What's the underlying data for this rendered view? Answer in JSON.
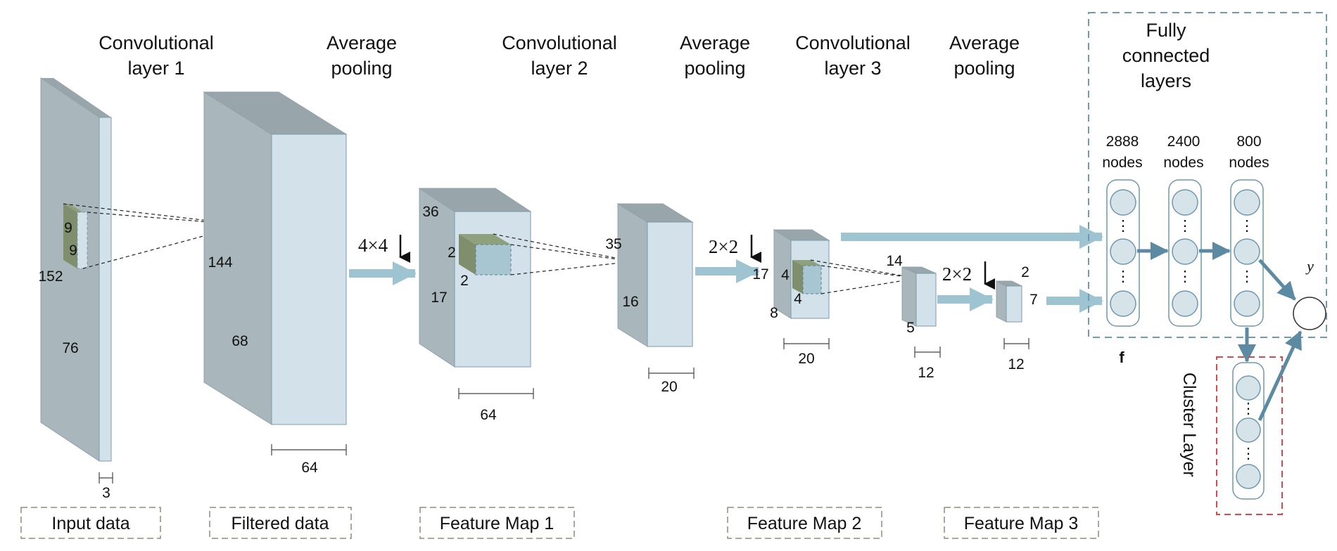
{
  "colors": {
    "block_side": "#a9b6bb",
    "block_top": "#98a5aa",
    "block_front": "#d3e2ea",
    "block_edge": "#7d9aab",
    "kernel_dark": "#7f8f6e",
    "kernel_light": "#a7c6d2",
    "arrow_light": "#9ec4d2",
    "arrow_dark": "#5c8aa3",
    "node_fill": "#d6e4ea",
    "node_stroke": "#6f98ad",
    "fc_box": "#6f9ab1",
    "cluster_box": "#e0474c",
    "label_box": "#8f8b80"
  },
  "headings": {
    "conv1": [
      "Convolutional",
      "layer 1"
    ],
    "pool1": [
      "Average",
      "pooling"
    ],
    "conv2": [
      "Convolutional",
      "layer 2"
    ],
    "pool2": [
      "Average",
      "pooling"
    ],
    "conv3": [
      "Convolutional",
      "layer 3"
    ],
    "pool3": [
      "Average",
      "pooling"
    ],
    "fc": [
      "Fully",
      "connected",
      "layers"
    ]
  },
  "dims": {
    "input_kernel_a": "9",
    "input_kernel_b": "9",
    "input_h": "152",
    "input_w": "76",
    "input_d": "3",
    "filtered_h": "144",
    "filtered_w": "68",
    "filtered_d": "64",
    "fm1_h": "36",
    "fm1_w": "17",
    "fm1_k_a": "2",
    "fm1_k_b": "2",
    "fm1_d": "64",
    "pool1_h": "35",
    "pool1_w": "16",
    "pool1_d": "20",
    "conv3_in": "17",
    "conv3_k_a": "4",
    "conv3_k_b": "4",
    "conv3_w": "8",
    "fm2_d": "20",
    "pool3_h": "14",
    "pool3_w": "5",
    "pool3_d": "12",
    "fm3_h": "2",
    "fm3_w": "7",
    "fm3_d": "12"
  },
  "ops": {
    "pool_4x4": "4×4",
    "pool_2x2_a": "2×2",
    "pool_2x2_b": "2×2"
  },
  "fc_layers": {
    "layer1": [
      "2888",
      "nodes"
    ],
    "layer2": [
      "2400",
      "nodes"
    ],
    "layer3": [
      "800",
      "nodes"
    ]
  },
  "ellipsis": "⋮",
  "feature_label": "f",
  "output_label": "y",
  "cluster_label": "Cluster Layer",
  "bottom_labels": {
    "input": "Input data",
    "filtered": "Filtered data",
    "fm1": "Feature Map 1",
    "fm2": "Feature Map 2",
    "fm3": "Feature Map 3"
  }
}
